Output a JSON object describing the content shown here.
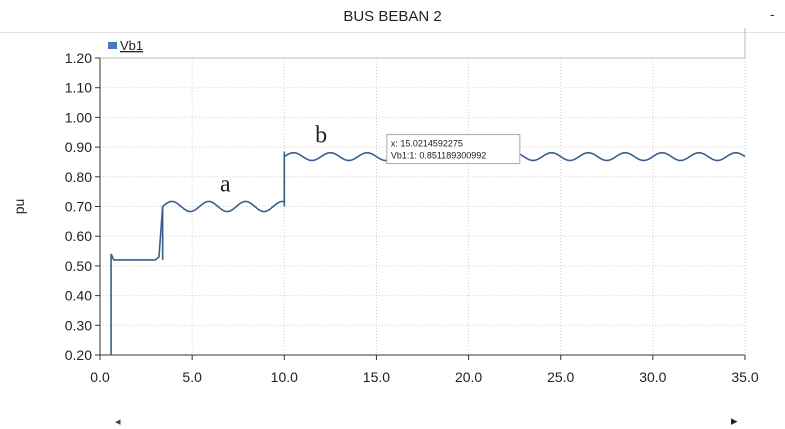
{
  "window": {
    "title": "BUS BEBAN 2"
  },
  "chart_data": {
    "type": "line",
    "title": "BUS BEBAN 2",
    "ylabel": "pu",
    "xlabel": "",
    "xlim": [
      0,
      35
    ],
    "ylim": [
      0.2,
      1.2
    ],
    "x_ticks": [
      "0.0",
      "5.0",
      "10.0",
      "15.0",
      "20.0",
      "25.0",
      "30.0",
      "35.0"
    ],
    "y_ticks": [
      "0.20",
      "0.30",
      "0.40",
      "0.50",
      "0.60",
      "0.70",
      "0.80",
      "0.90",
      "1.00",
      "1.10",
      "1.20"
    ],
    "grid": true,
    "legend": {
      "placement": "top-left",
      "entries": [
        "Vb1"
      ]
    },
    "series_color": "#3a5f8c",
    "legend_color": "#4a78b8",
    "series": [
      {
        "name": "Vb1",
        "segments": [
          {
            "x_start": 0.6,
            "x_end": 3.4,
            "kind": "flat",
            "base": 0.52
          },
          {
            "x_start": 3.4,
            "x_end": 10.0,
            "kind": "wave",
            "base": 0.7,
            "amplitude": 0.017,
            "period": 2.0
          },
          {
            "x_start": 10.0,
            "x_end": 35.0,
            "kind": "wave",
            "base": 0.868,
            "amplitude": 0.013,
            "period": 2.0
          }
        ],
        "initial_spike": {
          "x": 0.6,
          "y_low": 0.2,
          "y_high": 0.54
        },
        "first_rise": {
          "x": 3.4,
          "y_from": 0.52,
          "y_to": 0.7
        },
        "second_rise": {
          "x": 10.0,
          "y_from": 0.7,
          "y_to": 0.885
        }
      }
    ],
    "annotations": [
      {
        "label": "a",
        "x": 6.8,
        "y": 0.75
      },
      {
        "label": "b",
        "x": 12.0,
        "y": 0.915
      }
    ],
    "tooltip": {
      "x": 15.0214592275,
      "y": 0.851189300992,
      "line1": "x: 15.0214592275",
      "line2": "Vb1:1: 0.851189300992"
    }
  },
  "ui": {
    "corner_mark": "-",
    "scroll_left": "◂",
    "scroll_right": "▸"
  }
}
